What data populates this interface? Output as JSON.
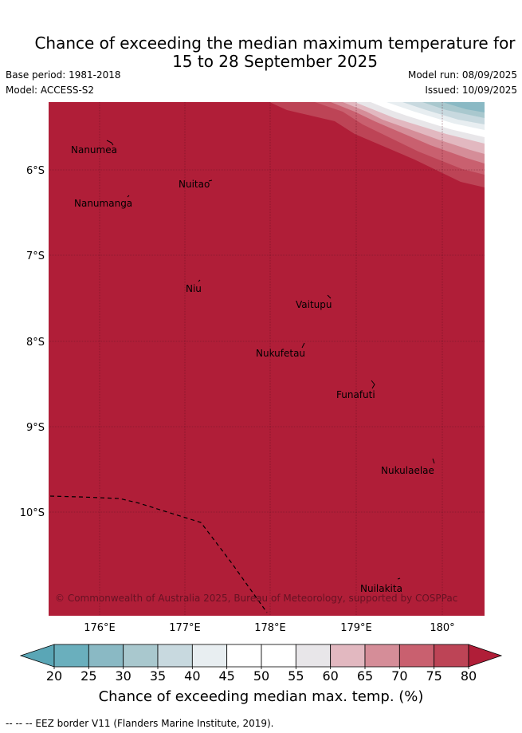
{
  "header": {
    "title_line1": "Chance of exceeding the median maximum temperature for",
    "title_line2": "15 to 28 September 2025",
    "base_period": "Base period: 1981-2018",
    "model": "Model: ACCESS-S2",
    "model_run": "Model run: 08/09/2025",
    "issued": "Issued: 10/09/2025"
  },
  "map": {
    "background_color": "#b01e38",
    "lat_labels": [
      "6°S",
      "7°S",
      "8°S",
      "9°S",
      "10°S"
    ],
    "lon_labels": [
      "176°E",
      "177°E",
      "178°E",
      "179°E",
      "180°"
    ],
    "places": [
      "Nanumea",
      "Nuitao",
      "Nanumanga",
      "Niu",
      "Vaitupu",
      "Nukufetau",
      "Funafuti",
      "Nukulaelae",
      "Nuilakita"
    ],
    "copyright": "© Commonwealth of Australia 2025, Bureau of Meteorology, supported by COSPPac"
  },
  "colorbar": {
    "ticks": [
      "20",
      "25",
      "30",
      "35",
      "40",
      "45",
      "50",
      "55",
      "60",
      "65",
      "70",
      "75",
      "80"
    ],
    "colors": [
      "#6aafbd",
      "#8ab9c4",
      "#a9c8ce",
      "#c8d9df",
      "#e8eef1",
      "#ffffff",
      "#ffffff",
      "#e8e6e9",
      "#e2b8c0",
      "#d58d98",
      "#c9606f",
      "#bd4456"
    ],
    "under_color": "#5aa6b6",
    "over_color": "#b01e38",
    "label": "Chance of exceeding median max. temp. (%)"
  },
  "footer": {
    "eez_note": "--  --  -- EEZ border V11 (Flanders Marine Institute, 2019)."
  }
}
